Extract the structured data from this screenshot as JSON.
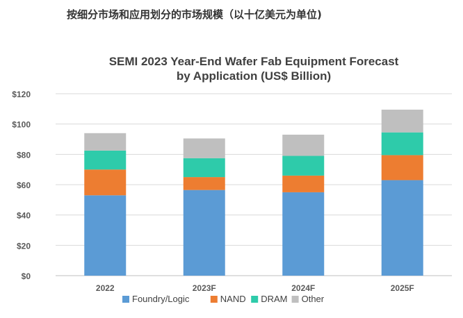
{
  "page": {
    "heading": "按细分市场和应用划分的市场规模（以十亿美元为单位)"
  },
  "chart_data": {
    "type": "bar",
    "stacked": true,
    "title_lines": [
      "SEMI 2023 Year-End Wafer Fab Equipment Forecast",
      "by Application (US$ Billion)"
    ],
    "xlabel": "",
    "ylabel": "",
    "ylim": [
      0,
      120
    ],
    "y_ticks": [
      0,
      20,
      40,
      60,
      80,
      100,
      120
    ],
    "y_tick_labels": [
      "$0",
      "$20",
      "$40",
      "$60",
      "$80",
      "$100",
      "$120"
    ],
    "categories": [
      "2022",
      "2023F",
      "2024F",
      "2025F"
    ],
    "grid": true,
    "legend_position": "bottom",
    "series": [
      {
        "name": "Foundry/Logic",
        "color": "#5b9bd5",
        "values": [
          53,
          56.5,
          55,
          63
        ]
      },
      {
        "name": "NAND",
        "color": "#ed7d31",
        "values": [
          17,
          8.5,
          11,
          16.5
        ]
      },
      {
        "name": "DRAM",
        "color": "#2ecbaa",
        "values": [
          12.5,
          12.5,
          13,
          15
        ]
      },
      {
        "name": "Other",
        "color": "#bfbfbf",
        "values": [
          11.5,
          13,
          14,
          15
        ]
      }
    ]
  }
}
